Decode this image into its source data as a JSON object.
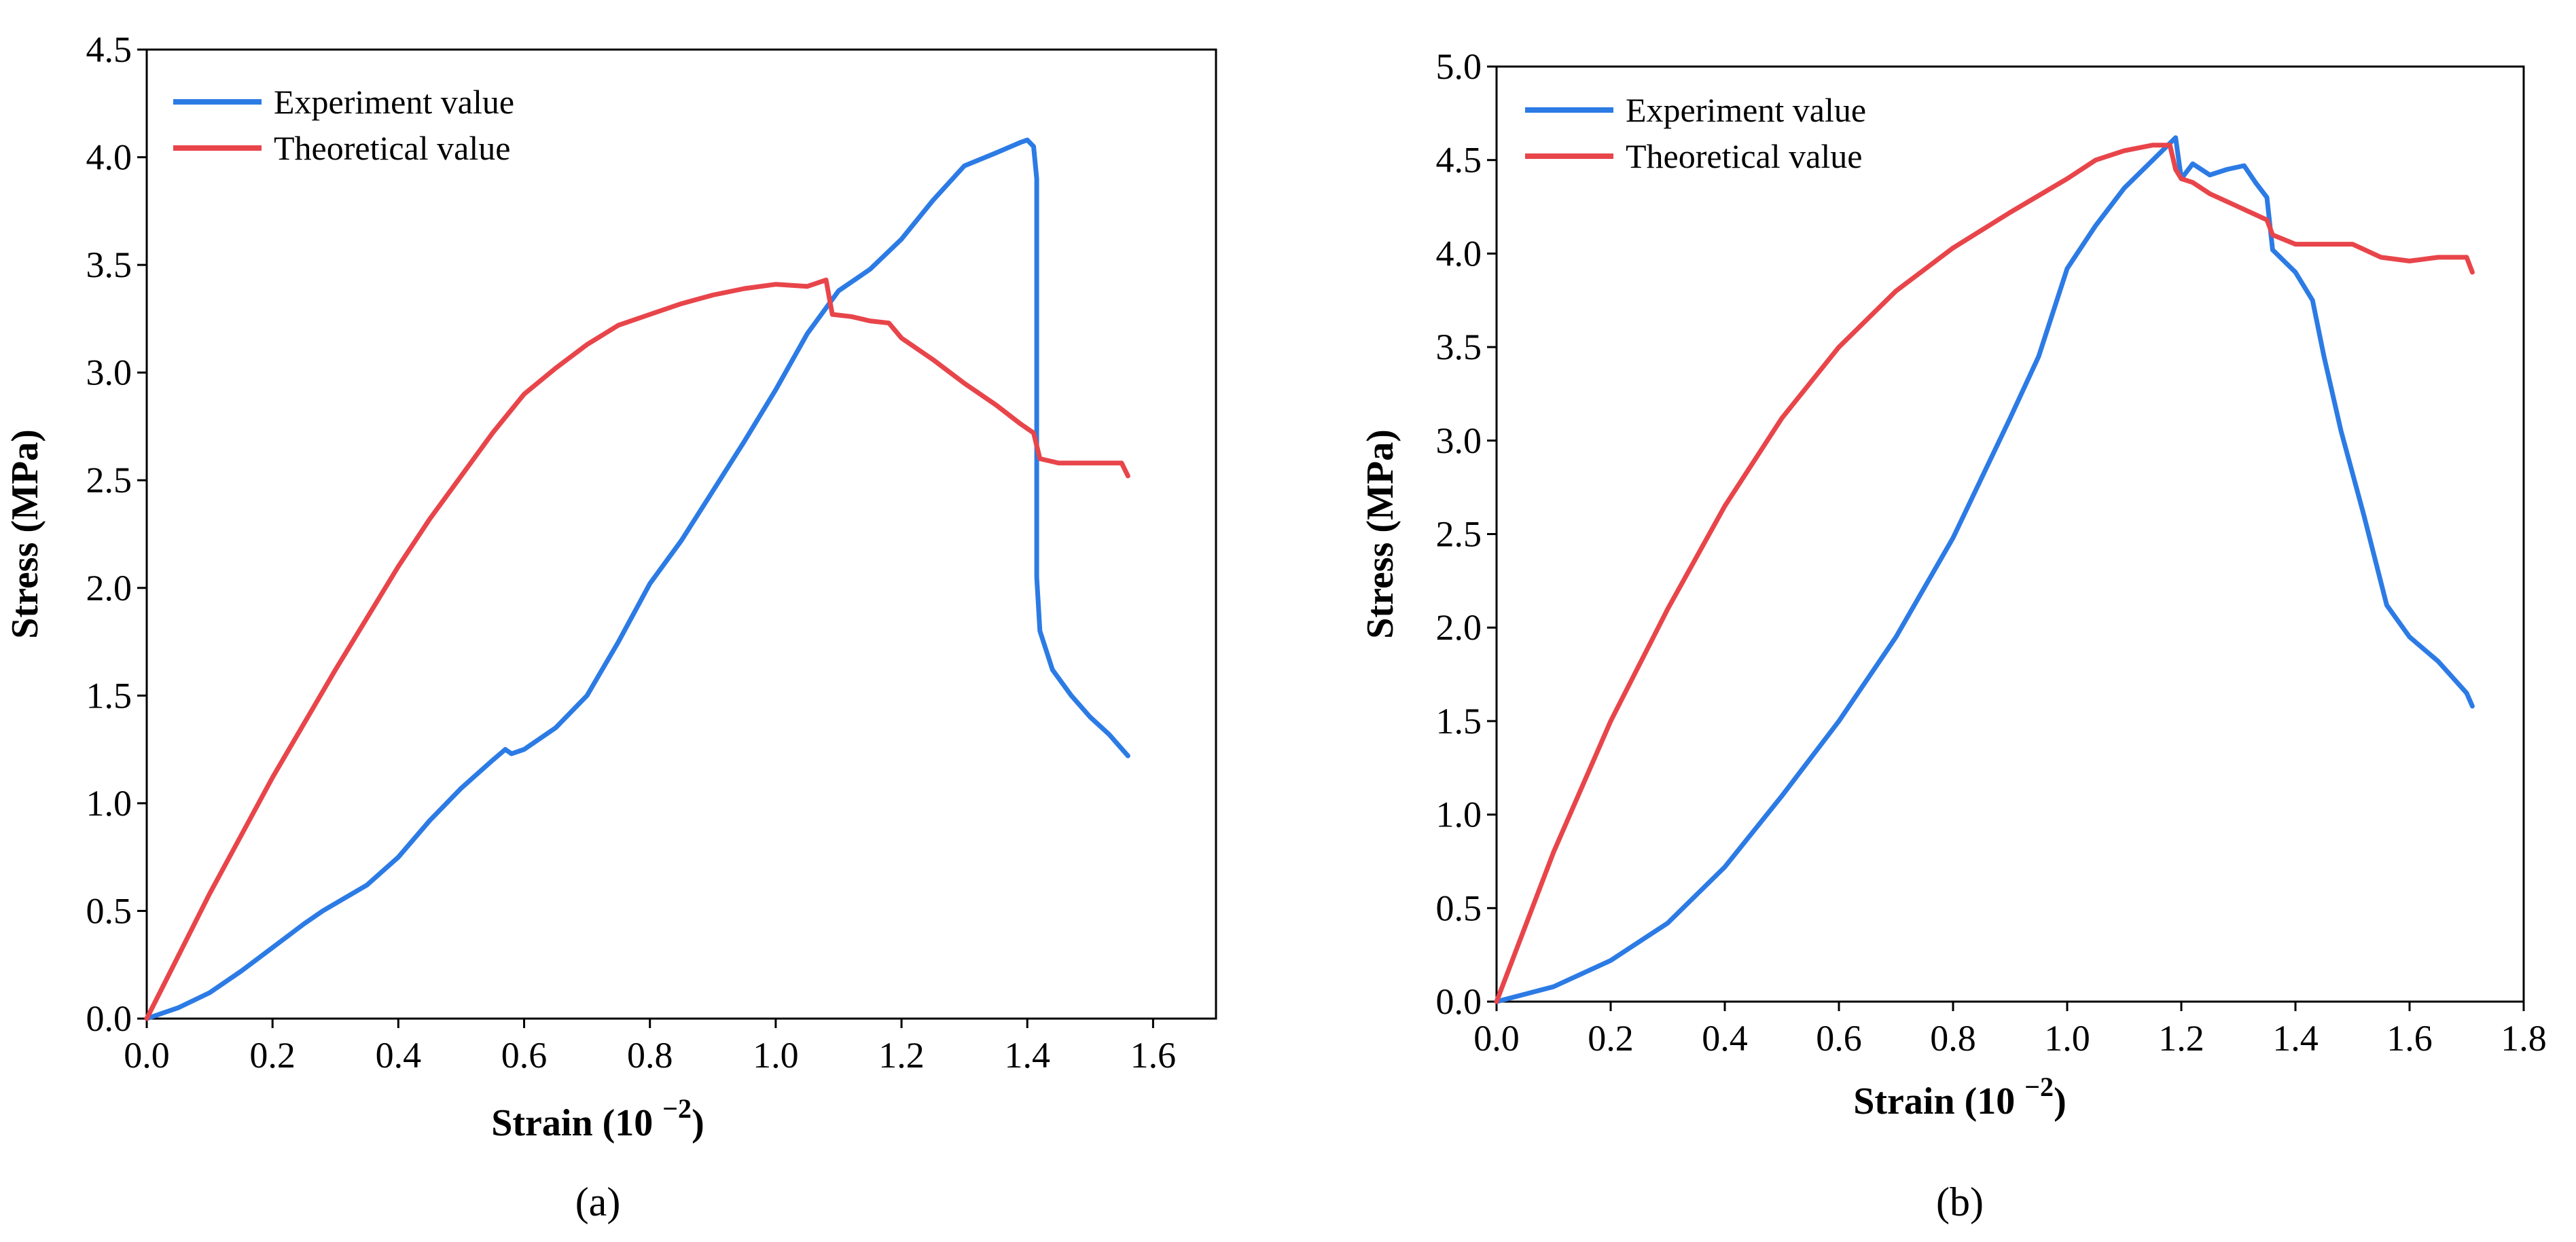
{
  "colors": {
    "experiment": "#2C7BE5",
    "theoretical": "#E8454A",
    "axis": "#000000"
  },
  "chart_data": [
    {
      "type": "line",
      "panel_label": "(a)",
      "xlabel": "Strain (10 −2)",
      "ylabel": "Stress (MPa)",
      "xlim": [
        0,
        1.7
      ],
      "ylim": [
        0,
        4.5
      ],
      "xticks": [
        "0.0",
        "0.2",
        "0.4",
        "0.6",
        "0.8",
        "1.0",
        "1.2",
        "1.4",
        "1.6"
      ],
      "yticks": [
        "0.0",
        "0.5",
        "1.0",
        "1.5",
        "2.0",
        "2.5",
        "3.0",
        "3.5",
        "4.0",
        "4.5"
      ],
      "legend": "top-left",
      "series": [
        {
          "name": "Experiment value",
          "x": [
            0,
            0.05,
            0.1,
            0.15,
            0.2,
            0.25,
            0.28,
            0.35,
            0.4,
            0.45,
            0.5,
            0.55,
            0.57,
            0.58,
            0.6,
            0.65,
            0.7,
            0.75,
            0.8,
            0.85,
            0.9,
            0.95,
            1.0,
            1.05,
            1.1,
            1.15,
            1.2,
            1.25,
            1.3,
            1.35,
            1.39,
            1.4,
            1.41,
            1.415,
            1.415,
            1.42,
            1.44,
            1.47,
            1.5,
            1.53,
            1.56
          ],
          "y": [
            0,
            0.05,
            0.12,
            0.22,
            0.33,
            0.44,
            0.5,
            0.62,
            0.75,
            0.92,
            1.07,
            1.2,
            1.25,
            1.23,
            1.25,
            1.35,
            1.5,
            1.75,
            2.02,
            2.22,
            2.45,
            2.68,
            2.92,
            3.18,
            3.38,
            3.48,
            3.62,
            3.8,
            3.96,
            4.02,
            4.07,
            4.08,
            4.05,
            3.9,
            2.05,
            1.8,
            1.62,
            1.5,
            1.4,
            1.32,
            1.22
          ]
        },
        {
          "name": "Theoretical value",
          "x": [
            0,
            0.1,
            0.2,
            0.3,
            0.4,
            0.45,
            0.5,
            0.55,
            0.6,
            0.65,
            0.7,
            0.75,
            0.8,
            0.85,
            0.9,
            0.95,
            1.0,
            1.05,
            1.08,
            1.09,
            1.12,
            1.15,
            1.18,
            1.2,
            1.25,
            1.3,
            1.35,
            1.39,
            1.41,
            1.42,
            1.45,
            1.5,
            1.55,
            1.56
          ],
          "y": [
            0,
            0.58,
            1.12,
            1.62,
            2.1,
            2.32,
            2.52,
            2.72,
            2.9,
            3.02,
            3.13,
            3.22,
            3.27,
            3.32,
            3.36,
            3.39,
            3.41,
            3.4,
            3.43,
            3.27,
            3.26,
            3.24,
            3.23,
            3.16,
            3.06,
            2.95,
            2.85,
            2.76,
            2.72,
            2.6,
            2.58,
            2.58,
            2.58,
            2.52
          ]
        }
      ]
    },
    {
      "type": "line",
      "panel_label": "(b)",
      "xlabel": "Strain (10 −2)",
      "ylabel": "Stress (MPa)",
      "xlim": [
        0,
        1.8
      ],
      "ylim": [
        0,
        5.0
      ],
      "xticks": [
        "0.0",
        "0.2",
        "0.4",
        "0.6",
        "0.8",
        "1.0",
        "1.2",
        "1.4",
        "1.6",
        "1.8"
      ],
      "yticks": [
        "0.0",
        "0.5",
        "1.0",
        "1.5",
        "2.0",
        "2.5",
        "3.0",
        "3.5",
        "4.0",
        "4.5",
        "5.0"
      ],
      "legend": "top-left",
      "series": [
        {
          "name": "Experiment value",
          "x": [
            0,
            0.1,
            0.2,
            0.3,
            0.4,
            0.5,
            0.6,
            0.7,
            0.8,
            0.9,
            0.95,
            1.0,
            1.05,
            1.1,
            1.15,
            1.19,
            1.2,
            1.22,
            1.25,
            1.28,
            1.31,
            1.33,
            1.35,
            1.36,
            1.4,
            1.43,
            1.45,
            1.48,
            1.52,
            1.56,
            1.6,
            1.65,
            1.7,
            1.71
          ],
          "y": [
            0,
            0.08,
            0.22,
            0.42,
            0.72,
            1.1,
            1.5,
            1.95,
            2.48,
            3.12,
            3.45,
            3.92,
            4.15,
            4.35,
            4.5,
            4.62,
            4.4,
            4.48,
            4.42,
            4.45,
            4.47,
            4.38,
            4.3,
            4.02,
            3.9,
            3.75,
            3.45,
            3.05,
            2.6,
            2.12,
            1.95,
            1.82,
            1.65,
            1.58
          ]
        },
        {
          "name": "Theoretical value",
          "x": [
            0,
            0.1,
            0.2,
            0.3,
            0.4,
            0.5,
            0.6,
            0.7,
            0.8,
            0.9,
            1.0,
            1.05,
            1.1,
            1.15,
            1.18,
            1.19,
            1.2,
            1.22,
            1.25,
            1.3,
            1.35,
            1.36,
            1.4,
            1.45,
            1.5,
            1.55,
            1.6,
            1.65,
            1.7,
            1.71
          ],
          "y": [
            0,
            0.8,
            1.5,
            2.1,
            2.65,
            3.12,
            3.5,
            3.8,
            4.03,
            4.22,
            4.4,
            4.5,
            4.55,
            4.58,
            4.58,
            4.45,
            4.4,
            4.38,
            4.32,
            4.25,
            4.18,
            4.1,
            4.05,
            4.05,
            4.05,
            3.98,
            3.96,
            3.98,
            3.98,
            3.9
          ]
        }
      ]
    }
  ]
}
